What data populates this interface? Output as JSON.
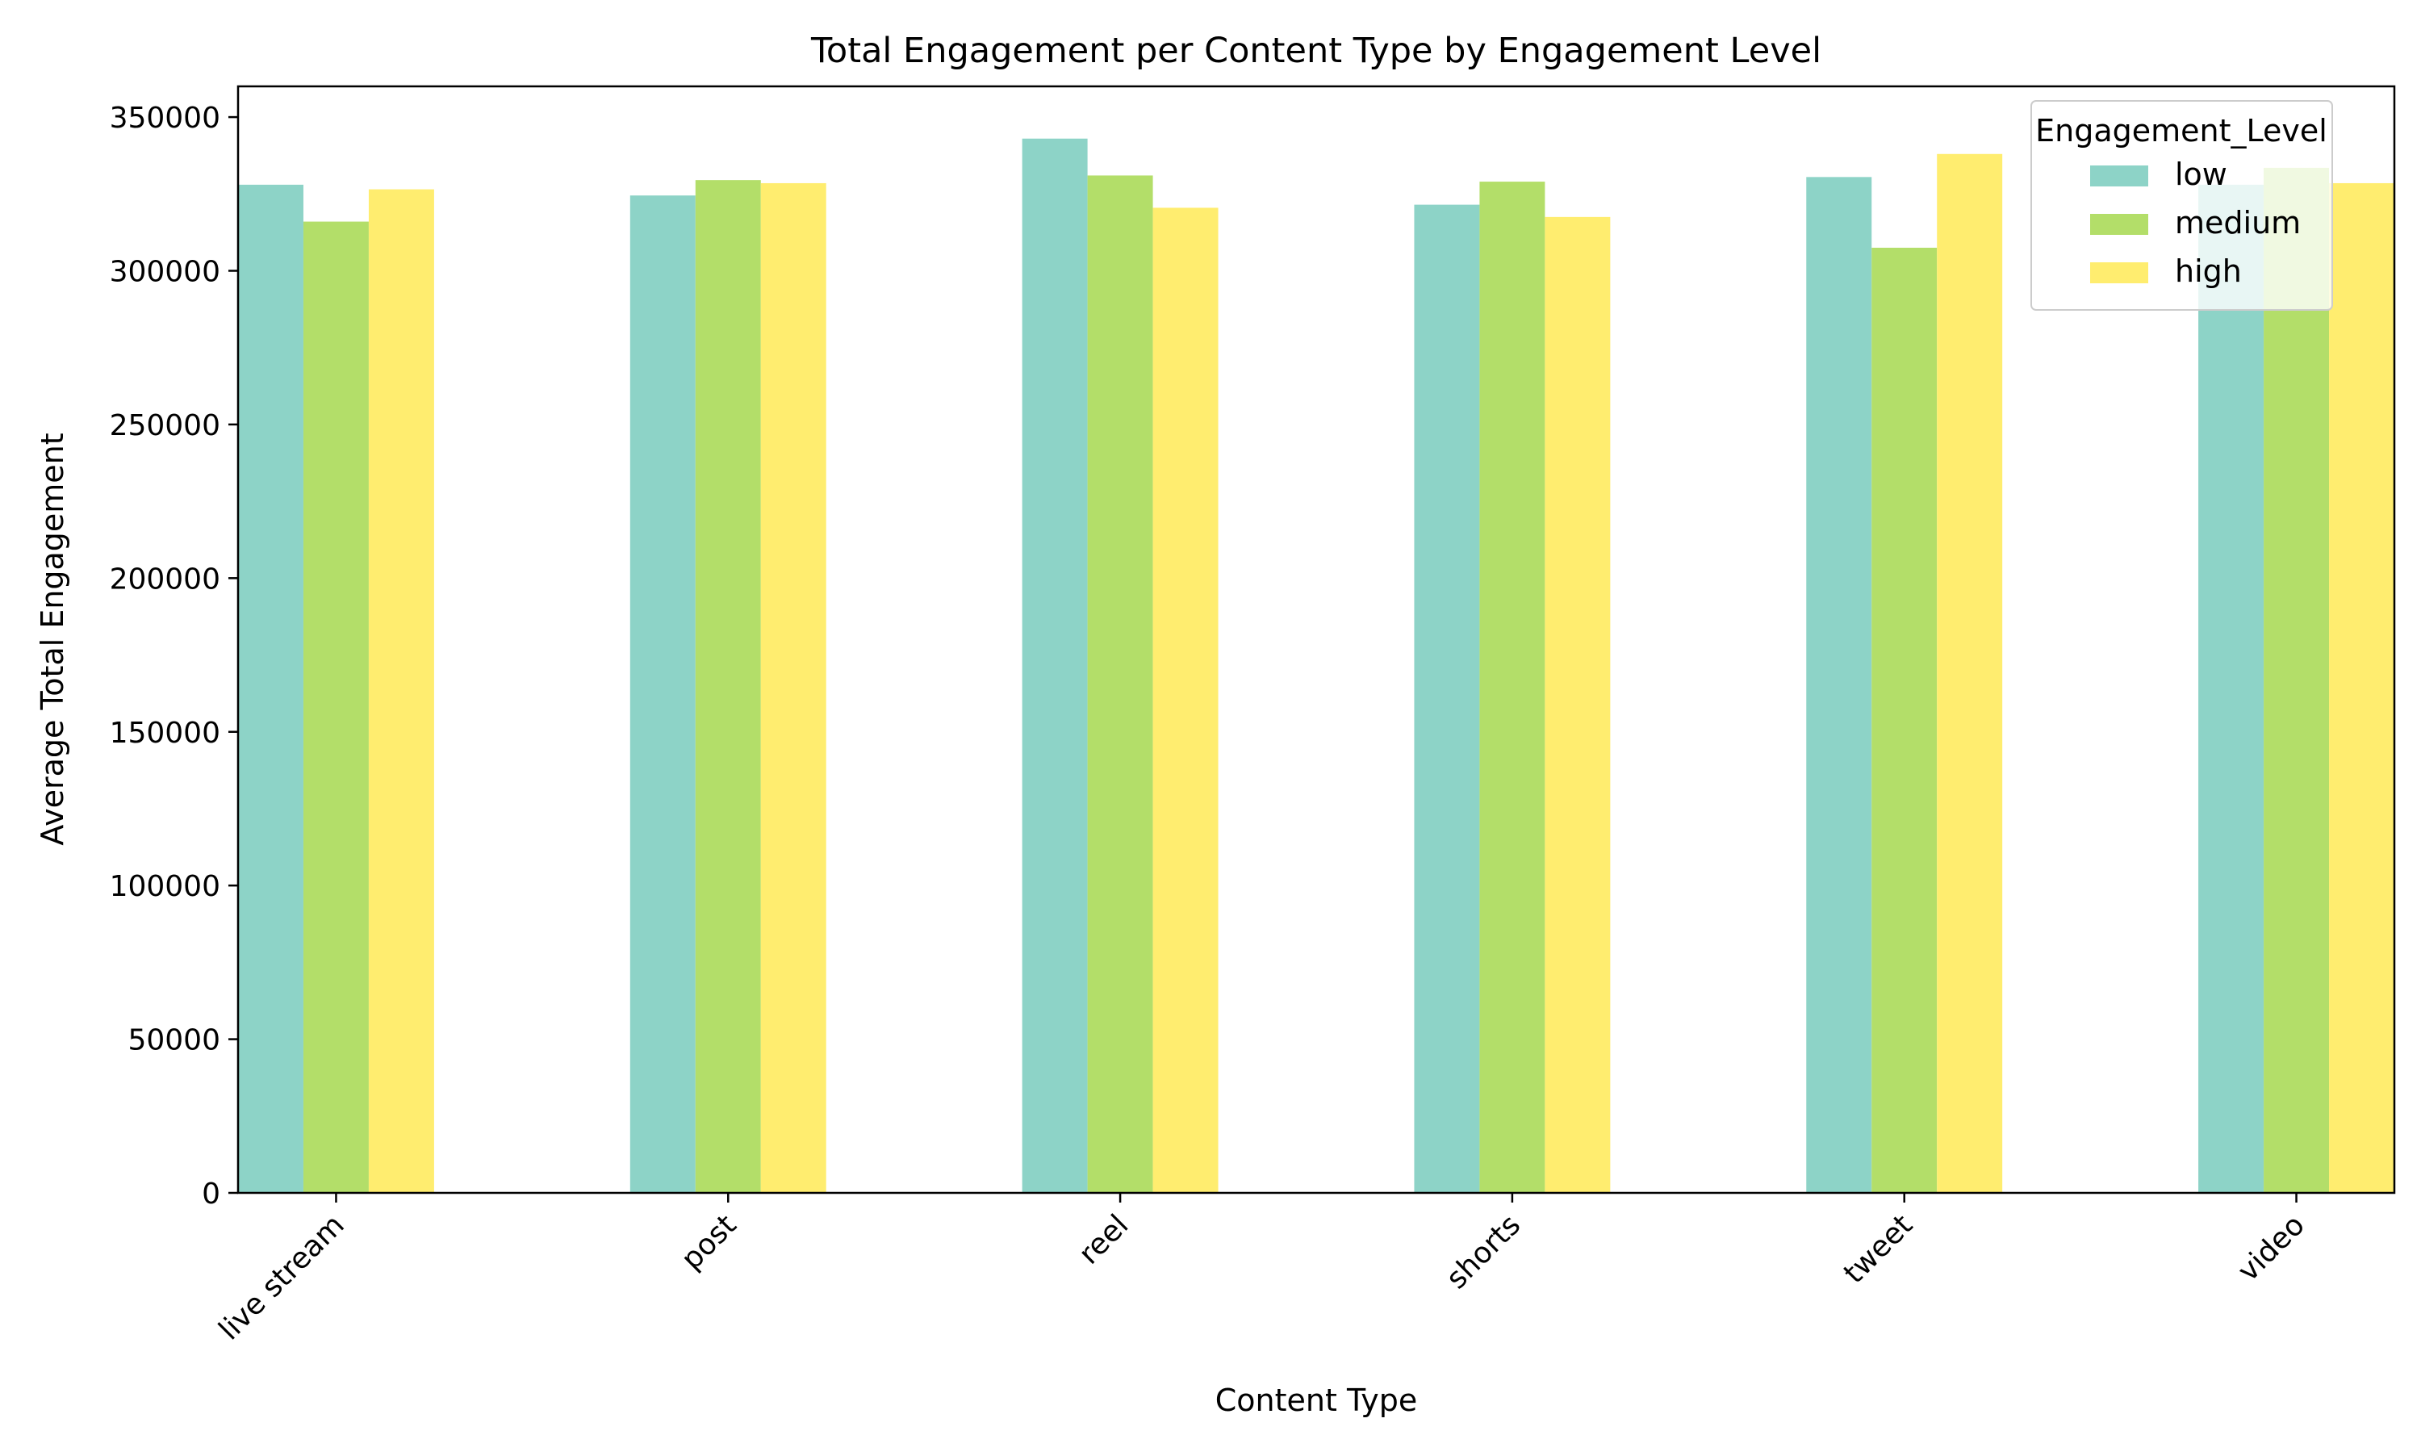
{
  "chart_data": {
    "type": "bar",
    "title": "Total Engagement per Content Type by Engagement Level",
    "xlabel": "Content Type",
    "ylabel": "Average Total Engagement",
    "categories": [
      "live stream",
      "post",
      "reel",
      "shorts",
      "tweet",
      "video"
    ],
    "series": [
      {
        "name": "low",
        "color": "#8dd3c7",
        "values": [
          328000,
          324500,
          343000,
          321500,
          330500,
          328000
        ]
      },
      {
        "name": "medium",
        "color": "#b3de69",
        "values": [
          316000,
          329500,
          331000,
          329000,
          307500,
          333500
        ]
      },
      {
        "name": "high",
        "color": "#ffed6f",
        "values": [
          326500,
          328500,
          320500,
          317500,
          338000,
          328500
        ]
      }
    ],
    "ylim": [
      0,
      360000
    ],
    "yticks": [
      0,
      50000,
      100000,
      150000,
      200000,
      250000,
      300000,
      350000
    ],
    "ytick_labels": [
      "0",
      "50000",
      "100000",
      "150000",
      "200000",
      "250000",
      "300000",
      "350000"
    ],
    "grid": false,
    "legend": {
      "title": "Engagement_Level",
      "placement": "top-right"
    }
  }
}
